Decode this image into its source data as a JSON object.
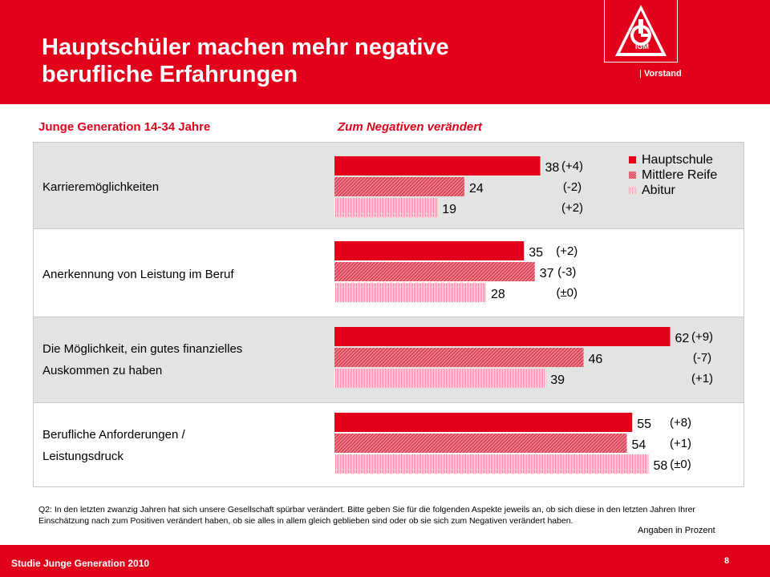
{
  "header": {
    "title_line1": "Hauptschüler machen mehr negative",
    "title_line2": "berufliche Erfahrungen",
    "org_label": "Vorstand",
    "logo_text": "IGM"
  },
  "subheads": {
    "left": "Junge Generation 14-34 Jahre",
    "right": "Zum Negativen verändert"
  },
  "legend": [
    {
      "label": "Hauptschule",
      "color": "#e2001a"
    },
    {
      "label": "Mittlere Reife",
      "color": "#e05565"
    },
    {
      "label": "Abitur",
      "color": "#f2a3ac"
    }
  ],
  "rows": [
    {
      "label_line1": "Karrieremöglichkeiten",
      "label_line2": ""
    },
    {
      "label_line1": "Anerkennung von Leistung im Beruf",
      "label_line2": ""
    },
    {
      "label_line1": "Die Möglichkeit, ein gutes finanzielles",
      "label_line2": "Auskommen zu haben"
    },
    {
      "label_line1": "Berufliche Anforderungen /",
      "label_line2": "Leistungsdruck"
    }
  ],
  "chart_data": {
    "type": "bar",
    "orientation": "horizontal",
    "title": "Zum Negativen verändert",
    "categories": [
      "Karrieremöglichkeiten",
      "Anerkennung von Leistung im Beruf",
      "Die Möglichkeit, ein gutes finanzielles Auskommen zu haben",
      "Berufliche Anforderungen / Leistungsdruck"
    ],
    "series": [
      {
        "name": "Hauptschule",
        "values": [
          38,
          35,
          62,
          55
        ],
        "changes": [
          "(+4)",
          "(+2)",
          "(+9)",
          "(+8)"
        ]
      },
      {
        "name": "Mittlere Reife",
        "values": [
          24,
          37,
          46,
          54
        ],
        "changes": [
          "(-2)",
          "(-3)",
          "(-7)",
          "(+1)"
        ]
      },
      {
        "name": "Abitur",
        "values": [
          19,
          28,
          39,
          58
        ],
        "changes": [
          "(+2)",
          "(±0)",
          "(+1)",
          "(±0)"
        ]
      }
    ],
    "xlim": [
      0,
      62
    ],
    "unit": "Angaben in Prozent",
    "legend_position": "top-right",
    "grid": false
  },
  "footer": {
    "question": "Q2: In den letzten zwanzig Jahren hat sich unsere Gesellschaft spürbar verändert. Bitte geben Sie für die folgenden Aspekte jeweils an, ob sich diese in den letzten Jahren Ihrer Einschätzung nach zum Positiven verändert haben, ob sie alles in allem gleich geblieben sind oder ob sie sich zum Negativen verändert haben.",
    "units": "Angaben in Prozent",
    "study": "Studie Junge Generation 2010",
    "page": "8"
  }
}
